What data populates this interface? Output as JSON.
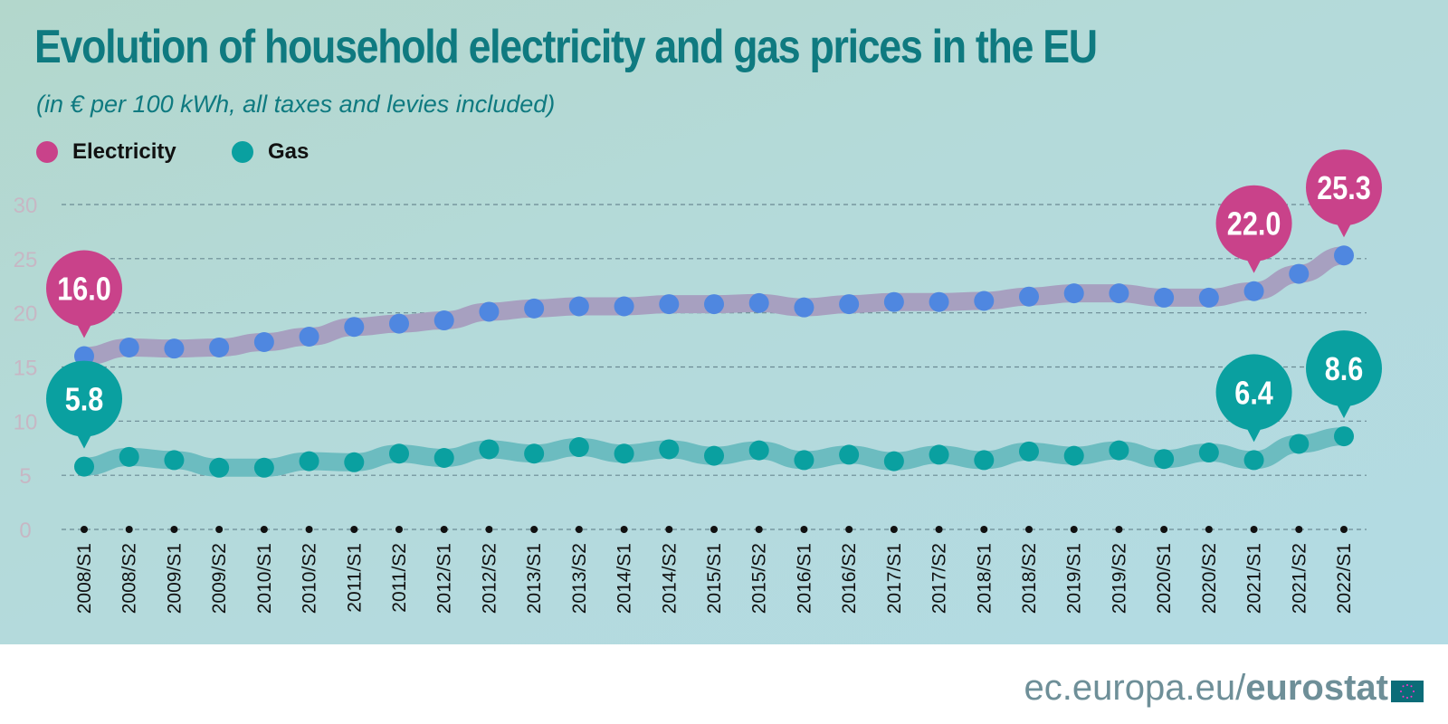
{
  "colors": {
    "electricity": "#c9428a",
    "gas": "#0aa0a0",
    "point_electricity": "#4f87e0",
    "band_electricity": "#a7a0c0",
    "band_gas": "#6cbcc0",
    "title": "#0f7a80"
  },
  "chart_data": {
    "type": "line",
    "title": "Evolution of household electricity and gas prices in the EU",
    "subtitle": "(in € per 100 kWh, all taxes and levies included)",
    "legend_position": "top-left",
    "grid": true,
    "ylim": [
      0,
      30
    ],
    "yticks": [
      0,
      5,
      10,
      15,
      20,
      25,
      30
    ],
    "categories": [
      "2008/S1",
      "2008/S2",
      "2009/S1",
      "2009/S2",
      "2010/S1",
      "2010/S2",
      "2011/S1",
      "2011/S2",
      "2012/S1",
      "2012/S2",
      "2013/S1",
      "2013/S2",
      "2014/S1",
      "2014/S2",
      "2015/S1",
      "2015/S2",
      "2016/S1",
      "2016/S2",
      "2017/S1",
      "2017/S2",
      "2018/S1",
      "2018/S2",
      "2019/S1",
      "2019/S2",
      "2020/S1",
      "2020/S2",
      "2021/S1",
      "2021/S2",
      "2022/S1"
    ],
    "series": [
      {
        "name": "Electricity",
        "values": [
          16.0,
          16.8,
          16.7,
          16.8,
          17.3,
          17.8,
          18.7,
          19.0,
          19.3,
          20.1,
          20.4,
          20.6,
          20.6,
          20.8,
          20.8,
          20.9,
          20.5,
          20.8,
          21.0,
          21.0,
          21.1,
          21.5,
          21.8,
          21.8,
          21.4,
          21.4,
          22.0,
          23.6,
          25.3
        ],
        "callouts": [
          {
            "index": 0,
            "label": "16.0"
          },
          {
            "index": 26,
            "label": "22.0"
          },
          {
            "index": 28,
            "label": "25.3"
          }
        ]
      },
      {
        "name": "Gas",
        "values": [
          5.8,
          6.7,
          6.4,
          5.7,
          5.7,
          6.3,
          6.2,
          7.0,
          6.6,
          7.4,
          7.0,
          7.6,
          7.0,
          7.4,
          6.8,
          7.3,
          6.4,
          6.9,
          6.3,
          6.9,
          6.4,
          7.2,
          6.8,
          7.3,
          6.5,
          7.1,
          6.4,
          7.9,
          8.6
        ],
        "callouts": [
          {
            "index": 0,
            "label": "5.8"
          },
          {
            "index": 26,
            "label": "6.4"
          },
          {
            "index": 28,
            "label": "8.6"
          }
        ]
      }
    ]
  },
  "footer": {
    "domain": "ec.europa.eu/",
    "brand": "eurostat"
  },
  "icons": {
    "logo": "eu-flag-icon"
  }
}
